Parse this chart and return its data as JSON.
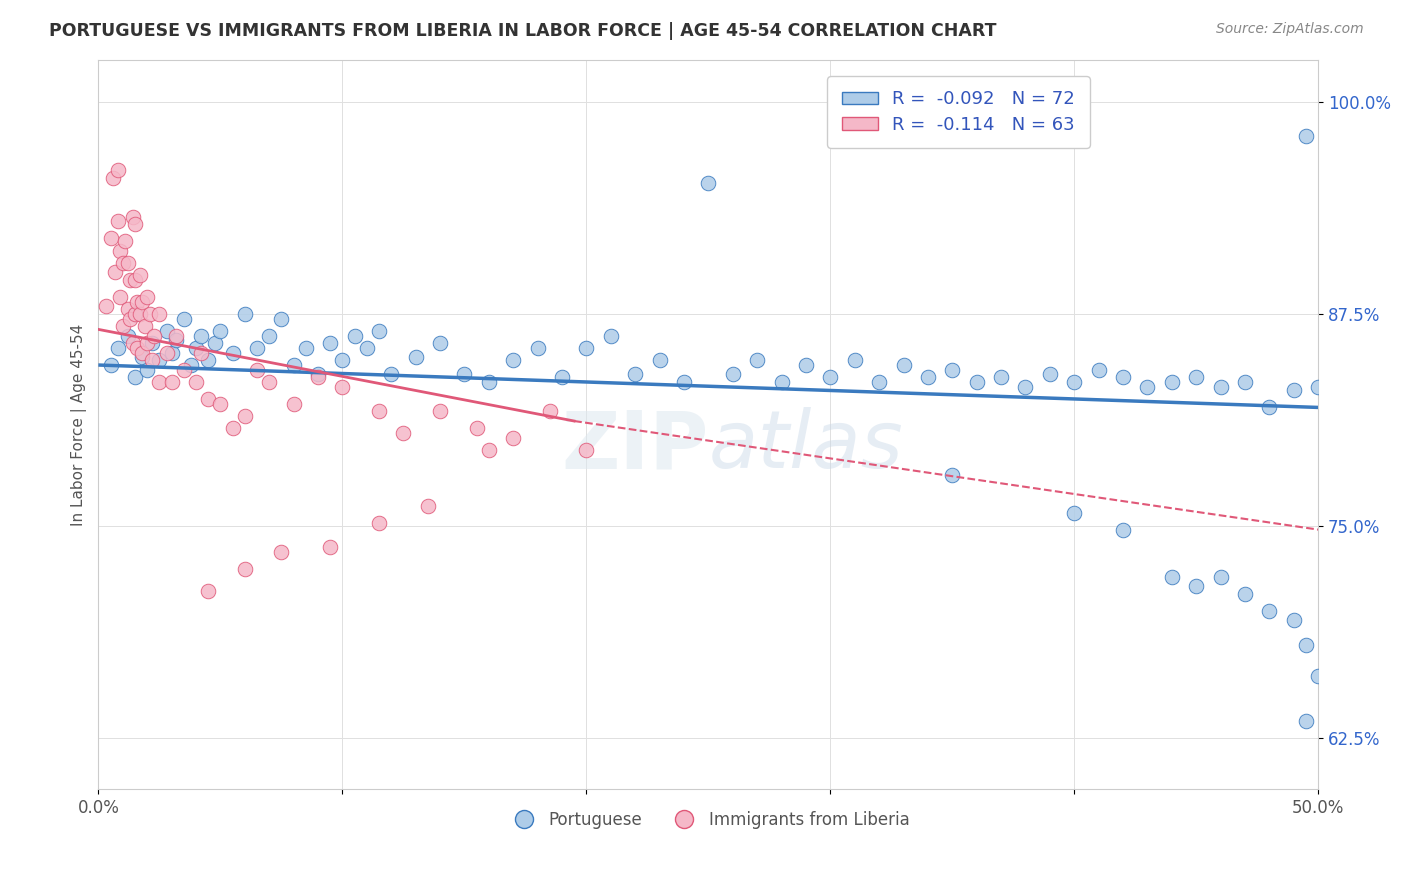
{
  "title": "PORTUGUESE VS IMMIGRANTS FROM LIBERIA IN LABOR FORCE | AGE 45-54 CORRELATION CHART",
  "source": "Source: ZipAtlas.com",
  "ylabel": "In Labor Force | Age 45-54",
  "xlim": [
    0.0,
    0.5
  ],
  "ylim": [
    0.595,
    1.025
  ],
  "yticks": [
    0.625,
    0.75,
    0.875,
    1.0
  ],
  "ytick_labels": [
    "62.5%",
    "75.0%",
    "87.5%",
    "100.0%"
  ],
  "xticks": [
    0.0,
    0.1,
    0.2,
    0.3,
    0.4,
    0.5
  ],
  "xtick_labels": [
    "0.0%",
    "",
    "",
    "",
    "",
    "50.0%"
  ],
  "legend_labels": [
    "Portuguese",
    "Immigrants from Liberia"
  ],
  "R_blue": -0.092,
  "N_blue": 72,
  "R_pink": -0.114,
  "N_pink": 63,
  "blue_color": "#aecce8",
  "pink_color": "#f5b8c8",
  "blue_line_color": "#3a7abf",
  "pink_line_color": "#e05878",
  "blue_scatter_x": [
    0.005,
    0.008,
    0.012,
    0.015,
    0.015,
    0.018,
    0.02,
    0.022,
    0.025,
    0.028,
    0.03,
    0.032,
    0.035,
    0.038,
    0.04,
    0.042,
    0.045,
    0.048,
    0.05,
    0.055,
    0.06,
    0.065,
    0.07,
    0.075,
    0.08,
    0.085,
    0.09,
    0.095,
    0.1,
    0.105,
    0.11,
    0.115,
    0.12,
    0.13,
    0.14,
    0.15,
    0.16,
    0.17,
    0.18,
    0.19,
    0.2,
    0.21,
    0.22,
    0.23,
    0.24,
    0.25,
    0.26,
    0.27,
    0.28,
    0.29,
    0.3,
    0.31,
    0.32,
    0.33,
    0.34,
    0.35,
    0.36,
    0.37,
    0.38,
    0.39,
    0.4,
    0.41,
    0.42,
    0.43,
    0.44,
    0.45,
    0.46,
    0.47,
    0.48,
    0.49,
    0.495,
    0.5
  ],
  "blue_scatter_y": [
    0.845,
    0.855,
    0.862,
    0.838,
    0.875,
    0.85,
    0.842,
    0.858,
    0.848,
    0.865,
    0.852,
    0.86,
    0.872,
    0.845,
    0.855,
    0.862,
    0.848,
    0.858,
    0.865,
    0.852,
    0.875,
    0.855,
    0.862,
    0.872,
    0.845,
    0.855,
    0.84,
    0.858,
    0.848,
    0.862,
    0.855,
    0.865,
    0.84,
    0.85,
    0.858,
    0.84,
    0.835,
    0.848,
    0.855,
    0.838,
    0.855,
    0.862,
    0.84,
    0.848,
    0.835,
    0.952,
    0.84,
    0.848,
    0.835,
    0.845,
    0.838,
    0.848,
    0.835,
    0.845,
    0.838,
    0.842,
    0.835,
    0.838,
    0.832,
    0.84,
    0.835,
    0.842,
    0.838,
    0.832,
    0.835,
    0.838,
    0.832,
    0.835,
    0.82,
    0.83,
    0.98,
    0.832
  ],
  "blue_scatter_y_extra": [
    0.78,
    0.758,
    0.748,
    0.72,
    0.715,
    0.72,
    0.71,
    0.7,
    0.695,
    0.68,
    0.662,
    0.635
  ],
  "blue_scatter_x_extra": [
    0.35,
    0.4,
    0.42,
    0.44,
    0.45,
    0.46,
    0.47,
    0.48,
    0.49,
    0.495,
    0.5,
    0.495
  ],
  "pink_scatter_x": [
    0.003,
    0.005,
    0.006,
    0.007,
    0.008,
    0.008,
    0.009,
    0.009,
    0.01,
    0.01,
    0.011,
    0.012,
    0.012,
    0.013,
    0.013,
    0.014,
    0.014,
    0.015,
    0.015,
    0.015,
    0.016,
    0.016,
    0.017,
    0.017,
    0.018,
    0.018,
    0.019,
    0.02,
    0.02,
    0.021,
    0.022,
    0.023,
    0.025,
    0.025,
    0.028,
    0.03,
    0.032,
    0.035,
    0.04,
    0.042,
    0.045,
    0.05,
    0.055,
    0.06,
    0.065,
    0.07,
    0.08,
    0.09,
    0.1,
    0.115,
    0.125,
    0.14,
    0.155,
    0.17,
    0.185,
    0.2,
    0.16,
    0.135,
    0.115,
    0.095,
    0.075,
    0.06,
    0.045
  ],
  "pink_scatter_y": [
    0.88,
    0.92,
    0.955,
    0.9,
    0.93,
    0.96,
    0.885,
    0.912,
    0.868,
    0.905,
    0.918,
    0.878,
    0.905,
    0.872,
    0.895,
    0.932,
    0.858,
    0.875,
    0.895,
    0.928,
    0.855,
    0.882,
    0.898,
    0.875,
    0.852,
    0.882,
    0.868,
    0.858,
    0.885,
    0.875,
    0.848,
    0.862,
    0.875,
    0.835,
    0.852,
    0.835,
    0.862,
    0.842,
    0.835,
    0.852,
    0.825,
    0.822,
    0.808,
    0.815,
    0.842,
    0.835,
    0.822,
    0.838,
    0.832,
    0.818,
    0.805,
    0.818,
    0.808,
    0.802,
    0.818,
    0.795,
    0.795,
    0.762,
    0.752,
    0.738,
    0.735,
    0.725,
    0.712
  ]
}
